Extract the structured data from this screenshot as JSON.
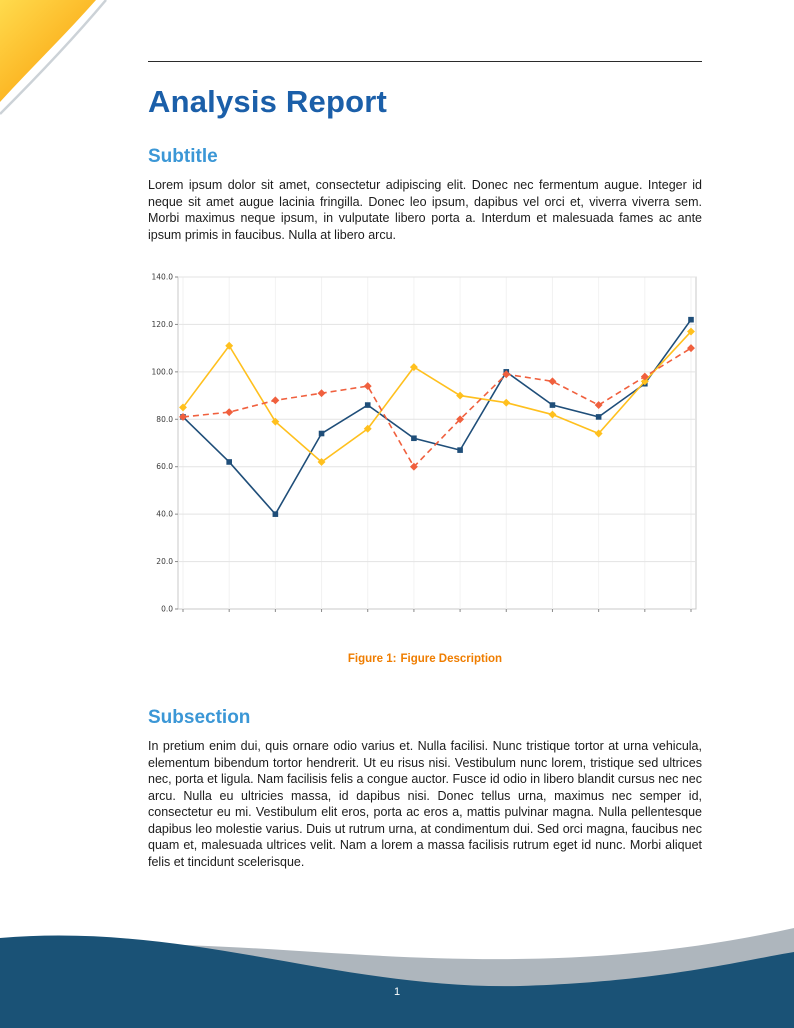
{
  "page": {
    "number": "1"
  },
  "header": {
    "title": "Analysis Report"
  },
  "sections": [
    {
      "heading": "Subtitle",
      "body": "Lorem ipsum dolor sit amet, consectetur adipiscing elit. Donec nec fermentum augue. Integer id neque sit amet augue lacinia fringilla. Donec leo ipsum, dapibus vel orci et, viverra viverra sem. Morbi maximus neque ipsum, in vulputate libero porta a. Interdum et malesuada fames ac ante ipsum primis in faucibus. Nulla at libero arcu."
    },
    {
      "heading": "Subsection",
      "body": "In pretium enim dui, quis ornare odio varius et. Nulla facilisi. Nunc tristique tortor at urna vehicula, elementum bibendum tortor hendrerit. Ut eu risus nisi. Vestibulum nunc lorem, tristique sed ultrices nec, porta et ligula. Nam facilisis felis a congue auctor. Fusce id odio in libero blandit cursus nec nec arcu. Nulla eu ultricies massa, id dapibus nisi. Donec tellus urna, maximus nec semper id, consectetur eu mi. Vestibulum elit eros, porta ac eros a, mattis pulvinar magna. Nulla pellentesque dapibus leo molestie varius. Duis ut rutrum urna, at condimentum dui. Sed orci magna, faucibus nec quam et, malesuada ultrices velit. Nam a lorem a massa facilisis rutrum eget id nunc. Morbi aliquet felis et tincidunt scelerisque."
    }
  ],
  "figure": {
    "caption_label": "Figure 1:",
    "caption_text": "Figure Description"
  },
  "chart_data": {
    "type": "line",
    "title": "",
    "xlabel": "",
    "ylabel": "",
    "x": [
      1,
      2,
      3,
      4,
      5,
      6,
      7,
      8,
      9,
      10,
      11,
      12
    ],
    "ylim": [
      0,
      140
    ],
    "yticks": [
      0,
      20,
      40,
      60,
      80,
      100,
      120,
      140
    ],
    "ytick_labels": [
      "0.0",
      "20.0",
      "40.0",
      "60.0",
      "80.0",
      "100.0",
      "120.0",
      "140.0"
    ],
    "grid": true,
    "legend": "none",
    "series": [
      {
        "name": "Series A (dark blue, square markers, solid)",
        "color": "#1f4e79",
        "marker": "square",
        "line_style": "solid",
        "values": [
          81,
          62,
          40,
          74,
          86,
          72,
          67,
          100,
          86,
          81,
          95,
          122
        ]
      },
      {
        "name": "Series B (yellow, diamond markers, solid)",
        "color": "#ffc01e",
        "marker": "diamond",
        "line_style": "solid",
        "values": [
          85,
          111,
          79,
          62,
          76,
          102,
          90,
          87,
          82,
          74,
          96,
          117
        ]
      },
      {
        "name": "Series C (orange-red, diamond markers, dashed)",
        "color": "#f0603e",
        "marker": "diamond",
        "line_style": "dashed",
        "values": [
          81,
          83,
          88,
          91,
          94,
          60,
          80,
          99,
          96,
          86,
          98,
          110
        ]
      }
    ]
  },
  "colors": {
    "title_blue": "#1b5fa9",
    "heading_blue": "#3b97d6",
    "caption_orange": "#ef7d00",
    "footer_navy": "#1a5276",
    "corner_orange": "#f59f13",
    "corner_yellow": "#ffdb4d"
  }
}
